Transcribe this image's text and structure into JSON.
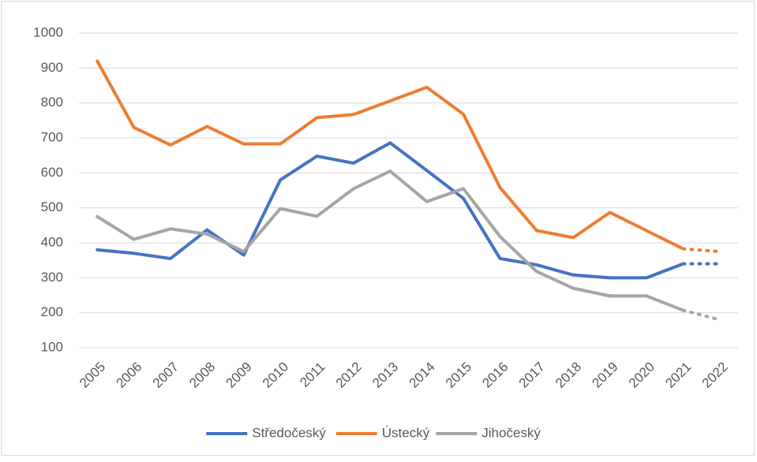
{
  "chart_data": {
    "type": "line",
    "categories": [
      "2005",
      "2006",
      "2007",
      "2008",
      "2009",
      "2010",
      "2011",
      "2012",
      "2013",
      "2014",
      "2015",
      "2016",
      "2017",
      "2018",
      "2019",
      "2020",
      "2021",
      "2022"
    ],
    "series": [
      {
        "name": "Středočeský",
        "color": "#4472c4",
        "values": [
          380,
          370,
          355,
          437,
          365,
          580,
          648,
          628,
          686,
          607,
          527,
          355,
          337,
          308,
          300,
          300,
          340,
          340
        ]
      },
      {
        "name": "Ústecký",
        "color": "#ed7d31",
        "values": [
          920,
          730,
          680,
          733,
          683,
          683,
          758,
          767,
          806,
          845,
          768,
          558,
          435,
          415,
          487,
          435,
          383,
          375
        ]
      },
      {
        "name": "Jihočeský",
        "color": "#a5a5a5",
        "values": [
          475,
          410,
          440,
          425,
          375,
          498,
          476,
          555,
          605,
          518,
          555,
          418,
          318,
          270,
          248,
          248,
          207,
          180
        ]
      }
    ],
    "ylim": [
      100,
      1000
    ],
    "yticks": [
      100,
      200,
      300,
      400,
      500,
      600,
      700,
      800,
      900,
      1000
    ],
    "grid": true,
    "legend": "bottom",
    "last_segment_dotted": true
  }
}
